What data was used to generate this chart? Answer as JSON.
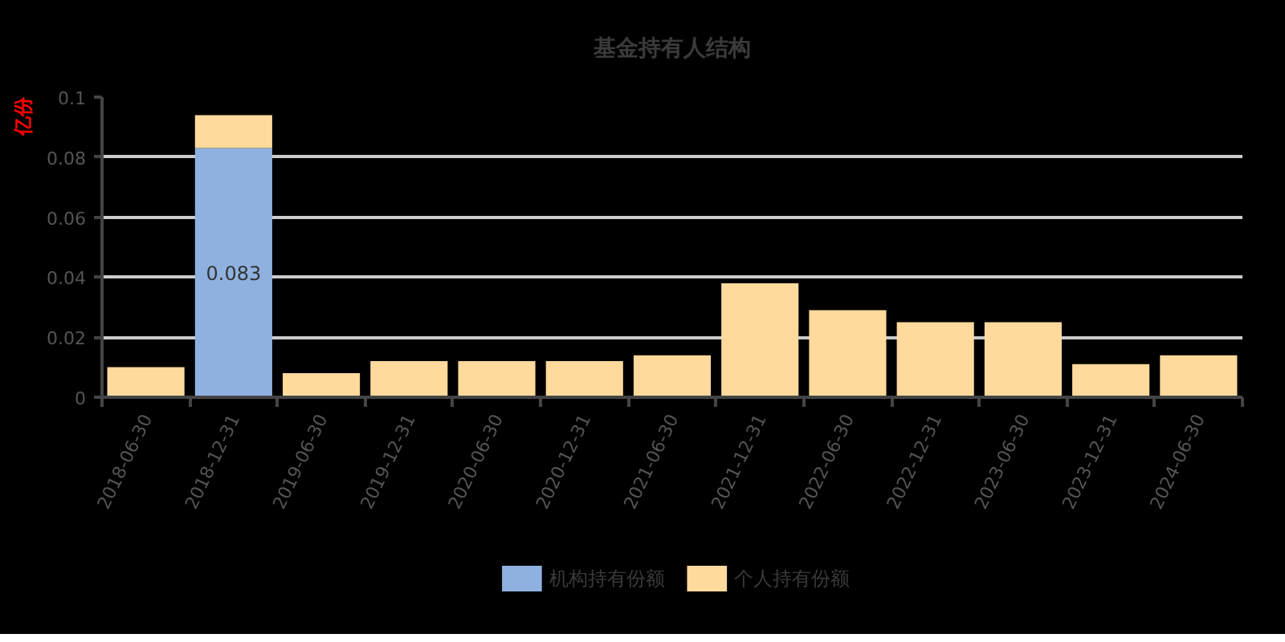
{
  "chart_data": {
    "type": "bar",
    "title": "基金持有人结构",
    "ylabel": "亿份",
    "categories": [
      "2018-06-30",
      "2018-12-31",
      "2019-06-30",
      "2019-12-31",
      "2020-06-30",
      "2020-12-31",
      "2021-06-30",
      "2021-12-31",
      "2022-06-30",
      "2022-12-31",
      "2023-06-30",
      "2023-12-31",
      "2024-06-30"
    ],
    "series": [
      {
        "name": "机构持有份额",
        "color": "#8eb1e0",
        "values": [
          null,
          0.083,
          null,
          null,
          null,
          null,
          null,
          null,
          null,
          null,
          null,
          null,
          null
        ],
        "value_labels": [
          null,
          "0.083",
          null,
          null,
          null,
          null,
          null,
          null,
          null,
          null,
          null,
          null,
          null
        ]
      },
      {
        "name": "个人持有份额",
        "color": "#ffda9c",
        "values": [
          0.01,
          0.011,
          0.008,
          0.012,
          0.012,
          0.012,
          0.014,
          0.038,
          0.029,
          0.025,
          0.025,
          0.011,
          0.014
        ]
      }
    ],
    "stacked": true,
    "ylim": [
      0,
      0.1
    ],
    "yticks": [
      0,
      0.02,
      0.04,
      0.06,
      0.08,
      0.1
    ],
    "grid": "y",
    "legend": "bottom"
  }
}
